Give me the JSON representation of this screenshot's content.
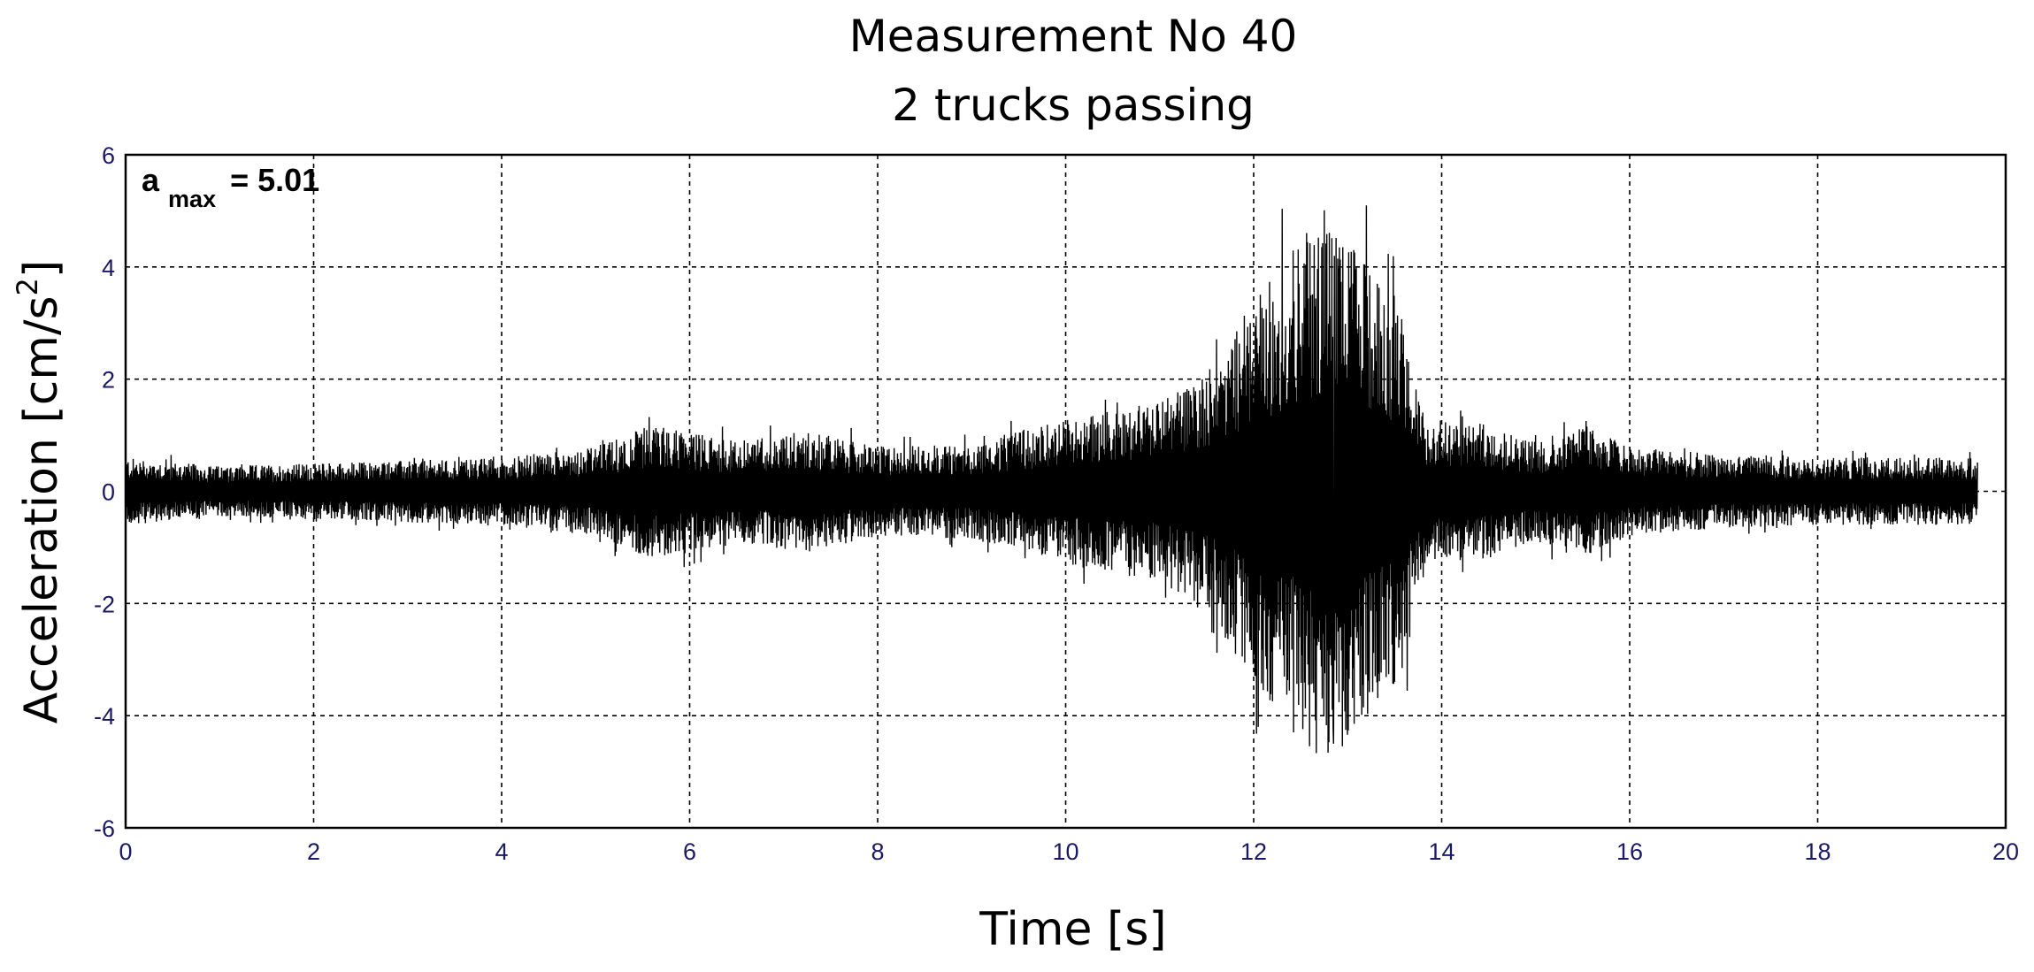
{
  "chart_data": {
    "type": "line",
    "title": "Measurement No 40",
    "subtitle": "2 trucks passing",
    "xlabel": "Time [s]",
    "ylabel": "Acceleration [cm/s",
    "ylabel_sup": "2",
    "ylabel_close": "]",
    "xlim": [
      0,
      20
    ],
    "ylim": [
      -6,
      6
    ],
    "xticks": [
      "0",
      "2",
      "4",
      "6",
      "8",
      "10",
      "12",
      "14",
      "16",
      "18",
      "20"
    ],
    "yticks": [
      "6",
      "4",
      "2",
      "0",
      "-2",
      "-4",
      "-6"
    ],
    "grid": true,
    "line_color": "#000000",
    "annotation": {
      "main": "a",
      "sub": "max",
      "value": "= 5.01"
    },
    "signal": {
      "duration": 19.7,
      "peak": 5.01,
      "peak_time": 12.75,
      "trough": -4.5,
      "trough_time": 12.85,
      "envelope": [
        [
          0.0,
          0.6
        ],
        [
          1.0,
          0.45
        ],
        [
          2.0,
          0.5
        ],
        [
          3.0,
          0.55
        ],
        [
          4.0,
          0.6
        ],
        [
          5.0,
          0.8
        ],
        [
          5.6,
          1.2
        ],
        [
          6.5,
          0.9
        ],
        [
          7.2,
          1.1
        ],
        [
          8.0,
          0.8
        ],
        [
          9.0,
          0.85
        ],
        [
          10.0,
          1.3
        ],
        [
          10.6,
          1.5
        ],
        [
          11.0,
          1.6
        ],
        [
          11.5,
          2.2
        ],
        [
          12.0,
          3.4
        ],
        [
          12.4,
          4.3
        ],
        [
          12.75,
          5.01
        ],
        [
          13.2,
          4.1
        ],
        [
          13.6,
          3.3
        ],
        [
          13.8,
          1.3
        ],
        [
          14.5,
          1.2
        ],
        [
          15.0,
          0.9
        ],
        [
          15.5,
          1.2
        ],
        [
          16.0,
          0.8
        ],
        [
          17.0,
          0.65
        ],
        [
          18.0,
          0.6
        ],
        [
          19.0,
          0.6
        ],
        [
          19.7,
          0.6
        ]
      ]
    }
  }
}
